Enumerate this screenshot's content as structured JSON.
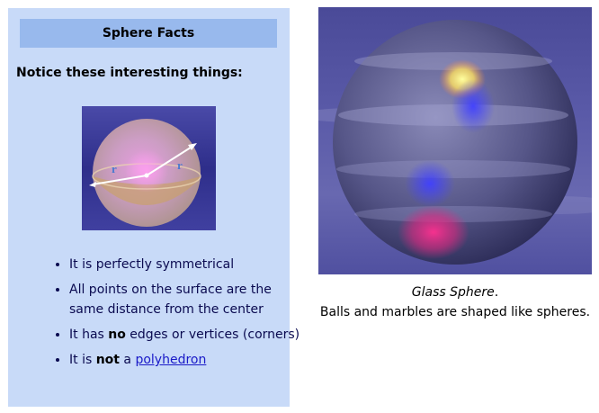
{
  "facts": {
    "title": "Sphere Facts",
    "intro": "Notice these interesting things:",
    "diagram_labels": {
      "radius_a": "r",
      "radius_b": "r"
    },
    "items": [
      {
        "text": "It is perfectly symmetrical"
      },
      {
        "text": "All points on the surface are the same distance from the center"
      },
      {
        "pre": "It has ",
        "bold": "no",
        "post": " edges or vertices (corners)"
      },
      {
        "pre": "It is ",
        "bold": "not",
        "mid": " a ",
        "link": "polyhedron"
      }
    ]
  },
  "photo": {
    "caption_title": "Glass Sphere",
    "caption_title_suffix": ".",
    "caption_text": "Balls and marbles are shaped like spheres."
  },
  "colors": {
    "panel_bg": "#c8daf8",
    "title_bg": "#98b9ed",
    "link": "#1a1ac8"
  }
}
